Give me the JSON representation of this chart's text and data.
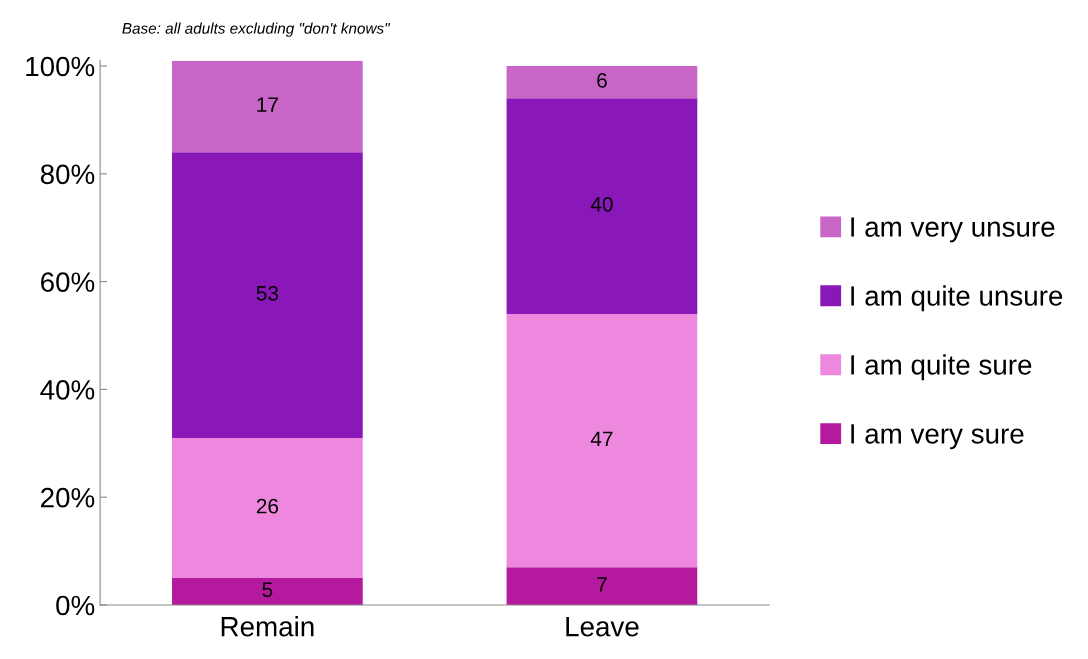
{
  "chart_data": {
    "type": "bar",
    "stacked": true,
    "categories": [
      "Remain",
      "Leave"
    ],
    "series": [
      {
        "name": "I am very sure",
        "color": "#b5199d",
        "values": [
          5,
          7
        ]
      },
      {
        "name": "I am quite sure",
        "color": "#ee88de",
        "values": [
          26,
          47
        ]
      },
      {
        "name": "I am quite unsure",
        "color": "#8a18b8",
        "values": [
          53,
          40
        ]
      },
      {
        "name": "I am very unsure",
        "color": "#c866c8",
        "values": [
          17,
          6
        ]
      }
    ],
    "data_labels": true,
    "ylim": [
      0,
      101
    ],
    "yticks": [
      {
        "value": 0,
        "label": "0%"
      },
      {
        "value": 20,
        "label": "20%"
      },
      {
        "value": 40,
        "label": "40%"
      },
      {
        "value": 60,
        "label": "60%"
      },
      {
        "value": 80,
        "label": "80%"
      },
      {
        "value": 100,
        "label": "100%"
      }
    ],
    "annotations": [
      "Base: all adults excluding \"don't knows\""
    ],
    "grid": false,
    "legend": "right"
  }
}
